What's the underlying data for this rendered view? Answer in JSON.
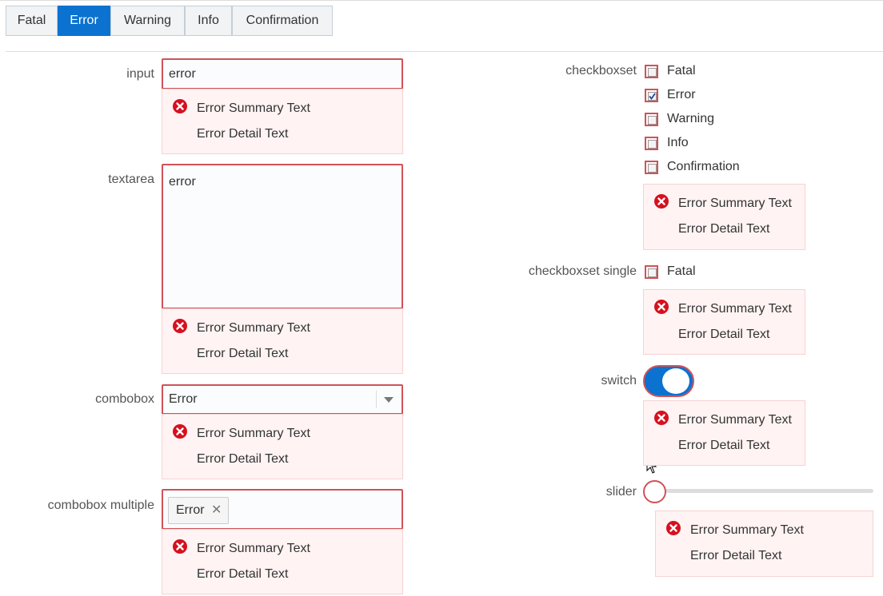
{
  "tabs": [
    "Fatal",
    "Error",
    "Warning",
    "Info",
    "Confirmation"
  ],
  "left_fields": [
    {
      "label": "input",
      "value": "error",
      "message": {
        "summary": "Error Summary Text",
        "detail": "Error Detail Text"
      }
    },
    {
      "label": "textarea",
      "value": "error",
      "message": {
        "summary": "Error Summary Text",
        "detail": "Error Detail Text"
      }
    },
    {
      "label": "combobox",
      "value": "Error",
      "message": {
        "summary": "Error Summary Text",
        "detail": "Error Detail Text"
      }
    },
    {
      "label": "combobox multiple",
      "chips": [
        "Error"
      ],
      "message": {
        "summary": "Error Summary Text",
        "detail": "Error Detail Text"
      }
    }
  ],
  "right_fields": [
    {
      "label": "checkboxset",
      "options": [
        "Fatal",
        "Error",
        "Warning",
        "Info",
        "Confirmation"
      ],
      "message": {
        "summary": "Error Summary Text",
        "detail": "Error Detail Text"
      }
    },
    {
      "label": "checkboxset single",
      "options": [
        "Fatal"
      ],
      "message": {
        "summary": "Error Summary Text",
        "detail": "Error Detail Text"
      }
    },
    {
      "label": "switch",
      "message": {
        "summary": "Error Summary Text",
        "detail": "Error Detail Text"
      }
    },
    {
      "label": "slider",
      "message": {
        "summary": "Error Summary Text",
        "detail": "Error Detail Text"
      }
    }
  ]
}
